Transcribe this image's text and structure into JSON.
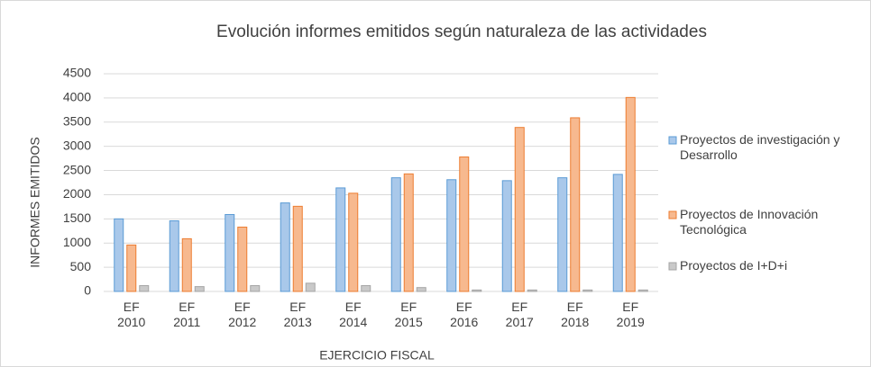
{
  "chart_data": {
    "type": "bar",
    "title": "Evolución informes emitidos según naturaleza de las actividades",
    "x_label": "EJERCICIO FISCAL",
    "y_label": "INFORMES EMITIDOS",
    "categories": [
      "EF 2010",
      "EF 2011",
      "EF 2012",
      "EF 2013",
      "EF 2014",
      "EF 2015",
      "EF 2016",
      "EF 2017",
      "EF 2018",
      "EF 2019"
    ],
    "series": [
      {
        "name": "Proyectos de investigación y Desarrollo",
        "color": "#5b9bd5",
        "fill": "#a9c8ea",
        "values": [
          1500,
          1460,
          1590,
          1830,
          2140,
          2350,
          2310,
          2290,
          2350,
          2420
        ]
      },
      {
        "name": "Proyectos de Innovación Tecnológica",
        "color": "#ed7d31",
        "fill": "#f7b98f",
        "values": [
          960,
          1090,
          1330,
          1760,
          2030,
          2430,
          2780,
          3390,
          3590,
          4010
        ]
      },
      {
        "name": "Proyectos de I+D+i",
        "color": "#a5a5a5",
        "fill": "#c9c9c9",
        "values": [
          120,
          100,
          120,
          170,
          120,
          80,
          30,
          30,
          30,
          30
        ]
      }
    ],
    "ylim": [
      0,
      4500
    ],
    "yticks": [
      0,
      500,
      1000,
      1500,
      2000,
      2500,
      3000,
      3500,
      4000,
      4500
    ],
    "grid": true,
    "legend": "right"
  }
}
